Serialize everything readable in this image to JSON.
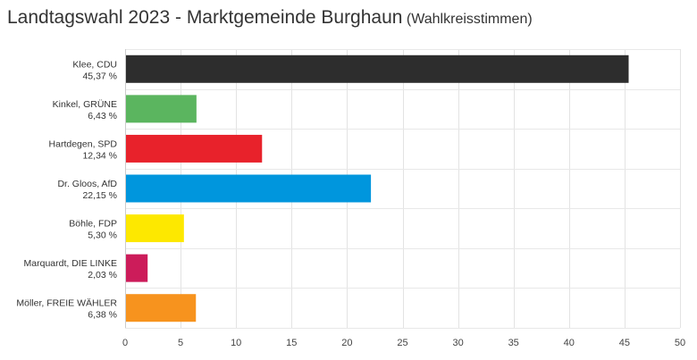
{
  "chart_data": {
    "type": "bar",
    "orientation": "horizontal",
    "title": "Landtagswahl 2023 - Marktgemeinde Burghaun",
    "subtitle": "(Wahlkreisstimmen)",
    "categories": [
      "Klee, CDU",
      "Kinkel, GRÜNE",
      "Hartdegen, SPD",
      "Dr. Gloos, AfD",
      "Böhle, FDP",
      "Marquardt, DIE LINKE",
      "Möller, FREIE WÄHLER"
    ],
    "value_labels": [
      "45,37 %",
      "6,43 %",
      "12,34 %",
      "22,15 %",
      "5,30 %",
      "2,03 %",
      "6,38 %"
    ],
    "values": [
      45.37,
      6.43,
      12.34,
      22.15,
      5.3,
      2.03,
      6.38
    ],
    "colors": [
      "#2d2d2d",
      "#5bb55f",
      "#e8222b",
      "#0096dd",
      "#fde800",
      "#cc1c5a",
      "#f7931e"
    ],
    "xlim": [
      0,
      50
    ],
    "xticks": [
      0,
      5,
      10,
      15,
      20,
      25,
      30,
      35,
      40,
      45,
      50
    ],
    "grid": true
  }
}
